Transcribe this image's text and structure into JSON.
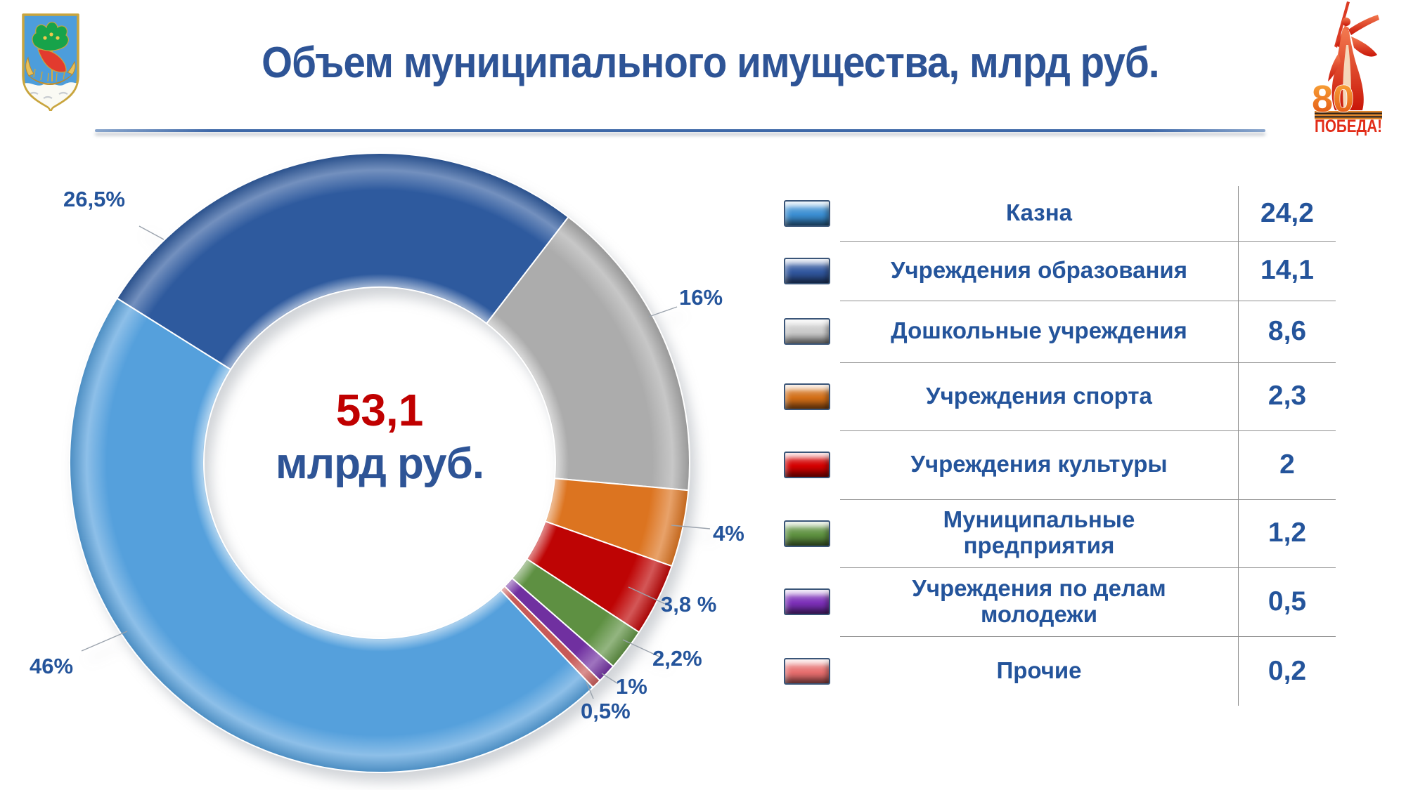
{
  "slide": {
    "title": "Объем муниципального имущества, млрд руб.",
    "title_color": "#2E5496",
    "emblem_name": "naberezhnye-chelny-coat-of-arms",
    "victory_logo": {
      "number": "80",
      "label": "ПОБЕДА!"
    }
  },
  "chart_data": {
    "type": "pie",
    "subtype": "donut-3d",
    "title": "Объем муниципального имущества, млрд руб.",
    "center_label": {
      "value": "53,1",
      "unit": "млрд руб."
    },
    "total": 53.1,
    "start_angle_deg": 136.5,
    "direction": "clockwise",
    "legend_position": "right-table",
    "label_color": "#24549B",
    "center_value_color": "#C00000",
    "series": [
      {
        "name": "Казна",
        "value": 24.2,
        "value_label": "24,2",
        "percent": 46,
        "percent_label": "46%",
        "color": "#55A0DC",
        "swatch_color": "#3B8ED2"
      },
      {
        "name": "Учреждения образования",
        "value": 14.1,
        "value_label": "14,1",
        "percent": 26.5,
        "percent_label": "26,5%",
        "color": "#2E5A9E",
        "swatch_color": "#31579E"
      },
      {
        "name": "Дошкольные учреждения",
        "value": 8.6,
        "value_label": "8,6",
        "percent": 16,
        "percent_label": "16%",
        "color": "#ACACAC",
        "swatch_color": "#C9C9C9"
      },
      {
        "name": "Учреждения спорта",
        "value": 2.3,
        "value_label": "2,3",
        "percent": 4,
        "percent_label": "4%",
        "color": "#DC7420",
        "swatch_color": "#D26E17"
      },
      {
        "name": "Учреждения культуры",
        "value": 2,
        "value_label": "2",
        "percent": 3.8,
        "percent_label": "3,8 %",
        "color": "#BE0404",
        "swatch_color": "#D40000"
      },
      {
        "name": "Муниципальные предприятия",
        "value": 1.2,
        "value_label": "1,2",
        "percent": 2.2,
        "percent_label": "2,2%",
        "color": "#5E9042",
        "swatch_color": "#5E9140"
      },
      {
        "name": "Учреждения по делам молодежи",
        "value": 0.5,
        "value_label": "0,5",
        "percent": 1,
        "percent_label": "1%",
        "color": "#7030A0",
        "swatch_color": "#7C30B8"
      },
      {
        "name": "Прочие",
        "value": 0.2,
        "value_label": "0,2",
        "percent": 0.5,
        "percent_label": "0,5%",
        "color": "#C75A58",
        "swatch_color": "#E66E6E"
      }
    ]
  }
}
